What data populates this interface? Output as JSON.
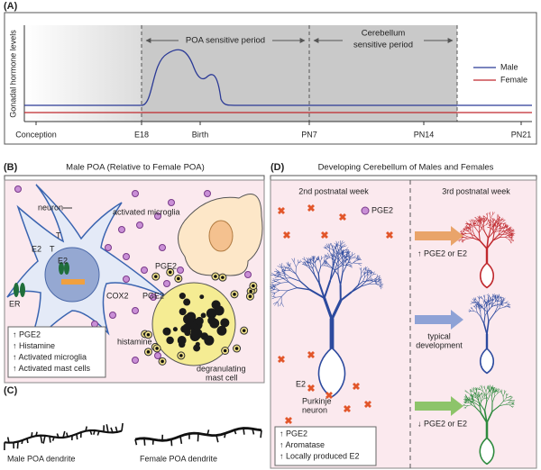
{
  "panel_a": {
    "label": "(A)",
    "y_axis_label": "Gonadal hormone levels",
    "x_labels": [
      "Conception",
      "E18",
      "Birth",
      "PN7",
      "PN14",
      "PN21"
    ],
    "periods": [
      "POA sensitive period",
      [
        "Cerebellum",
        "sensitive period"
      ]
    ],
    "legend": [
      {
        "name": "Male",
        "color": "#2b3a96"
      },
      {
        "name": "Female",
        "color": "#c0282d"
      }
    ]
  },
  "panel_b": {
    "label": "(B)",
    "title": "Male POA (Relative to Female POA)",
    "labels": {
      "neuron": "neuron",
      "microglia": "activated microglia",
      "t1": "T",
      "e2a": "E2",
      "t2": "T",
      "e2b": "E2",
      "er": "ER",
      "cox2": "COX2",
      "pge2a": "PGE2",
      "pge2b": "PGE2",
      "histamine": "histamine",
      "mast": [
        "degranulating",
        "mast cell"
      ]
    },
    "summary": [
      "↑ PGE2",
      "↑ Histamine",
      "↑ Activated microglia",
      "↑ Activated mast cells"
    ]
  },
  "panel_c": {
    "label": "(C)",
    "dendrites": [
      "Male POA dendrite",
      "Female POA dendrite"
    ]
  },
  "panel_d": {
    "label": "(D)",
    "title": "Developing Cerebellum of Males and Females",
    "weeks": [
      "2nd postnatal week",
      "3rd postnatal week"
    ],
    "pge2": "PGE2",
    "e2": "E2",
    "purkinje": [
      "Purkinje",
      "neuron"
    ],
    "outcomes": [
      [
        "↑ PGE2 or E2"
      ],
      [
        "typical",
        "development"
      ],
      [
        "↓ PGE2 or E2"
      ]
    ],
    "summary": [
      "↑ PGE2",
      "↑ Aromatase",
      "↑ Locally produced E2"
    ]
  }
}
